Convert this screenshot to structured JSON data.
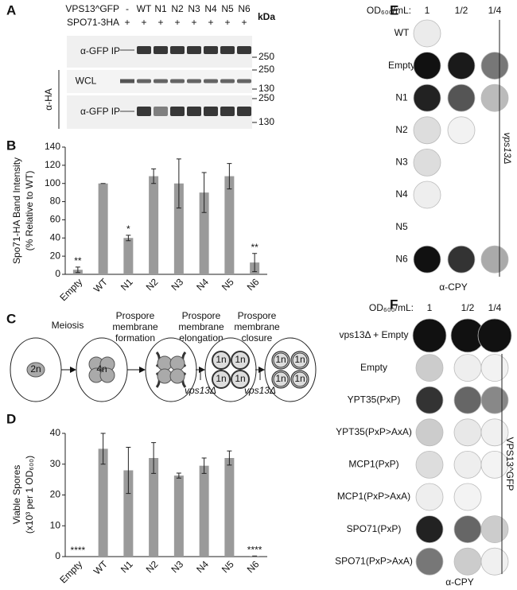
{
  "panel_labels": [
    "A",
    "B",
    "C",
    "D",
    "E",
    "F"
  ],
  "blot": {
    "rows": [
      {
        "label": "VPS13^GFP",
        "lanes": [
          "-",
          "WT",
          "N1",
          "N2",
          "N3",
          "N4",
          "N5",
          "N6"
        ]
      },
      {
        "label": "SPO71-3HA",
        "lanes": [
          "+",
          "+",
          "+",
          "+",
          "+",
          "+",
          "+",
          "+"
        ]
      }
    ],
    "unit": "kDa",
    "strips": [
      "α-GFP IP",
      "WCL",
      "α-GFP IP"
    ],
    "group": "α-HA",
    "markers": [
      250,
      250,
      130,
      250,
      130
    ]
  },
  "chart_data": [
    {
      "type": "bar",
      "ylabel": [
        "Spo71-HA  Band Intensity",
        "(% Relative to WT)"
      ],
      "categories": [
        "Empty",
        "WT",
        "N1",
        "N2",
        "N3",
        "N4",
        "N5",
        "N6"
      ],
      "values": [
        5,
        100,
        40,
        108,
        100,
        90,
        108,
        13
      ],
      "errors": [
        3,
        0,
        3,
        8,
        27,
        22,
        14,
        10
      ],
      "significance": [
        "**",
        null,
        "*",
        null,
        null,
        null,
        null,
        "**"
      ],
      "color": "#9a9a9a",
      "ylim": [
        0,
        140
      ],
      "yticks": [
        0,
        20,
        40,
        60,
        80,
        100,
        120,
        140
      ]
    },
    {
      "type": "bar",
      "ylabel": [
        "Viable Spores",
        "(x10³ per 1 OD₆₀₀)"
      ],
      "categories": [
        "Empty",
        "WT",
        "N1",
        "N2",
        "N3",
        "N4",
        "N5",
        "N6"
      ],
      "values": [
        0,
        35,
        28,
        32,
        26.3,
        29.5,
        32,
        0.2
      ],
      "errors": [
        0,
        5,
        7.5,
        5,
        0.8,
        2.5,
        2.3,
        0
      ],
      "significance": [
        "****",
        null,
        null,
        null,
        null,
        null,
        null,
        "****"
      ],
      "color": "#9a9a9a",
      "ylim": [
        0,
        40
      ],
      "yticks": [
        0,
        10,
        20,
        30,
        40
      ]
    }
  ],
  "diagram": {
    "stages": [
      [
        "Meiosis"
      ],
      [
        "Prospore",
        "membrane",
        "formation"
      ],
      [
        "Prospore",
        "membrane",
        "elongation"
      ],
      [
        "Prospore",
        "membrane",
        "closure"
      ]
    ],
    "ploidy": [
      "2n",
      "4n",
      "1n"
    ],
    "blocker": "vps13Δ"
  },
  "spot_assay_E": {
    "header": "OD₆₀₀/mL:",
    "dilutions": [
      "1",
      "1/2",
      "1/4"
    ],
    "rows": [
      "WT",
      "Empty",
      "N1",
      "N2",
      "N3",
      "N4",
      "N5",
      "N6"
    ],
    "strain": "vps13Δ",
    "probe": "α-CPY"
  },
  "spot_assay_F": {
    "header": "OD₆₀₀/mL:",
    "dilutions": [
      "1",
      "1/2",
      "1/4"
    ],
    "rows": [
      "vps13Δ + Empty",
      "Empty",
      "YPT35(PxP)",
      "YPT35(PxP>AxA)",
      "MCP1(PxP)",
      "MCP1(PxP>AxA)",
      "SPO71(PxP)",
      "SPO71(PxP>AxA)"
    ],
    "strain": "VPS13^GFP",
    "probe": "α-CPY"
  }
}
